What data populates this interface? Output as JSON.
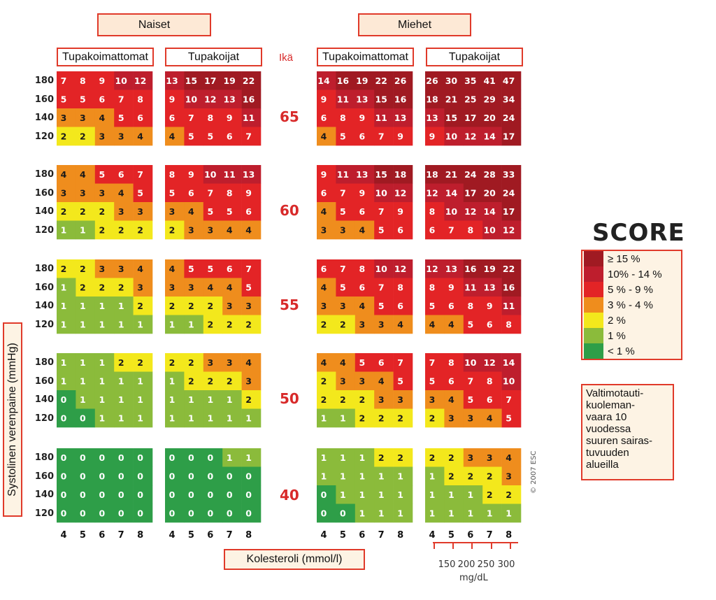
{
  "groups": {
    "women": "Naiset",
    "men": "Miehet"
  },
  "column_headers": [
    "Tupakoimattomat",
    "Tupakoijat",
    "Tupakoimattomat",
    "Tupakoijat"
  ],
  "age_header": "Ikä",
  "y_axis_label": "Systolinen verenpaine (mmHg)",
  "x_axis_label": "Kolesteroli (mmol/l)",
  "logo_text": "SCORE",
  "copyright": "© 2007 ESC",
  "legend": [
    {
      "label": "≥ 15 %",
      "color": "#a01a22"
    },
    {
      "label": "10% - 14 %",
      "color": "#be1e2d"
    },
    {
      "label": "5 % - 9 %",
      "color": "#e32426"
    },
    {
      "label": "3 % - 4 %",
      "color": "#ef8d1d"
    },
    {
      "label": "2 %",
      "color": "#f3e81c"
    },
    {
      "label": "1 %",
      "color": "#8bbb3b"
    },
    {
      "label": "< 1 %",
      "color": "#2e9e48"
    }
  ],
  "note_lines": [
    "Valtimotauti-",
    "kuoleman-",
    "vaara 10",
    "vuodessa",
    "suuren sairas-",
    "tuvuuden",
    "alueilla"
  ],
  "mgdl": {
    "ticks": [
      "150",
      "200",
      "250",
      "300"
    ],
    "unit": "mg/dL"
  },
  "chart_data": {
    "type": "heatmap",
    "title": "",
    "xlabel": "Kolesteroli (mmol/l)",
    "ylabel": "Systolinen verenpaine (mmHg)",
    "cholesterol": [
      "4",
      "5",
      "6",
      "7",
      "8"
    ],
    "sbp": [
      "180",
      "160",
      "140",
      "120"
    ],
    "ages": [
      "65",
      "60",
      "55",
      "50",
      "40"
    ],
    "panels": [
      {
        "group": "Naiset",
        "smoking": "Tupakoimattomat",
        "values": [
          [
            [
              7,
              8,
              9,
              10,
              12
            ],
            [
              5,
              5,
              6,
              7,
              8
            ],
            [
              3,
              3,
              4,
              5,
              6
            ],
            [
              2,
              2,
              3,
              3,
              4
            ]
          ],
          [
            [
              4,
              4,
              5,
              6,
              7
            ],
            [
              3,
              3,
              3,
              4,
              5
            ],
            [
              2,
              2,
              2,
              3,
              3
            ],
            [
              1,
              1,
              2,
              2,
              2
            ]
          ],
          [
            [
              2,
              2,
              3,
              3,
              4
            ],
            [
              1,
              2,
              2,
              2,
              3
            ],
            [
              1,
              1,
              1,
              1,
              2
            ],
            [
              1,
              1,
              1,
              1,
              1
            ]
          ],
          [
            [
              1,
              1,
              1,
              2,
              2
            ],
            [
              1,
              1,
              1,
              1,
              1
            ],
            [
              0,
              1,
              1,
              1,
              1
            ],
            [
              0,
              0,
              1,
              1,
              1
            ]
          ],
          [
            [
              0,
              0,
              0,
              0,
              0
            ],
            [
              0,
              0,
              0,
              0,
              0
            ],
            [
              0,
              0,
              0,
              0,
              0
            ],
            [
              0,
              0,
              0,
              0,
              0
            ]
          ]
        ]
      },
      {
        "group": "Naiset",
        "smoking": "Tupakoijat",
        "values": [
          [
            [
              13,
              15,
              17,
              19,
              22
            ],
            [
              9,
              10,
              12,
              13,
              16
            ],
            [
              6,
              7,
              8,
              9,
              11
            ],
            [
              4,
              5,
              5,
              6,
              7
            ]
          ],
          [
            [
              8,
              9,
              10,
              11,
              13
            ],
            [
              5,
              6,
              7,
              8,
              9
            ],
            [
              3,
              4,
              5,
              5,
              6
            ],
            [
              2,
              3,
              3,
              4,
              4
            ]
          ],
          [
            [
              4,
              5,
              5,
              6,
              7
            ],
            [
              3,
              3,
              4,
              4,
              5
            ],
            [
              2,
              2,
              2,
              3,
              3
            ],
            [
              1,
              1,
              2,
              2,
              2
            ]
          ],
          [
            [
              2,
              2,
              3,
              3,
              4
            ],
            [
              1,
              2,
              2,
              2,
              3
            ],
            [
              1,
              1,
              1,
              1,
              2
            ],
            [
              1,
              1,
              1,
              1,
              1
            ]
          ],
          [
            [
              0,
              0,
              0,
              1,
              1
            ],
            [
              0,
              0,
              0,
              0,
              0
            ],
            [
              0,
              0,
              0,
              0,
              0
            ],
            [
              0,
              0,
              0,
              0,
              0
            ]
          ]
        ]
      },
      {
        "group": "Miehet",
        "smoking": "Tupakoimattomat",
        "values": [
          [
            [
              14,
              16,
              19,
              22,
              26
            ],
            [
              9,
              11,
              13,
              15,
              16
            ],
            [
              6,
              8,
              9,
              11,
              13
            ],
            [
              4,
              5,
              6,
              7,
              9
            ]
          ],
          [
            [
              9,
              11,
              13,
              15,
              18
            ],
            [
              6,
              7,
              9,
              10,
              12
            ],
            [
              4,
              5,
              6,
              7,
              9
            ],
            [
              3,
              3,
              4,
              5,
              6
            ]
          ],
          [
            [
              6,
              7,
              8,
              10,
              12
            ],
            [
              4,
              5,
              6,
              7,
              8
            ],
            [
              3,
              3,
              4,
              5,
              6
            ],
            [
              2,
              2,
              3,
              3,
              4
            ]
          ],
          [
            [
              4,
              4,
              5,
              6,
              7
            ],
            [
              2,
              3,
              3,
              4,
              5
            ],
            [
              2,
              2,
              2,
              3,
              3
            ],
            [
              1,
              1,
              2,
              2,
              2
            ]
          ],
          [
            [
              1,
              1,
              1,
              2,
              2
            ],
            [
              1,
              1,
              1,
              1,
              1
            ],
            [
              0,
              1,
              1,
              1,
              1
            ],
            [
              0,
              0,
              1,
              1,
              1
            ]
          ]
        ]
      },
      {
        "group": "Miehet",
        "smoking": "Tupakoijat",
        "values": [
          [
            [
              26,
              30,
              35,
              41,
              47
            ],
            [
              18,
              21,
              25,
              29,
              34
            ],
            [
              13,
              15,
              17,
              20,
              24
            ],
            [
              9,
              10,
              12,
              14,
              17
            ]
          ],
          [
            [
              18,
              21,
              24,
              28,
              33
            ],
            [
              12,
              14,
              17,
              20,
              24
            ],
            [
              8,
              10,
              12,
              14,
              17
            ],
            [
              6,
              7,
              8,
              10,
              12
            ]
          ],
          [
            [
              12,
              13,
              16,
              19,
              22
            ],
            [
              8,
              9,
              11,
              13,
              16
            ],
            [
              5,
              6,
              8,
              9,
              11
            ],
            [
              4,
              4,
              5,
              6,
              8
            ]
          ],
          [
            [
              7,
              8,
              10,
              12,
              14
            ],
            [
              5,
              6,
              7,
              8,
              10
            ],
            [
              3,
              4,
              5,
              6,
              7
            ],
            [
              2,
              3,
              3,
              4,
              5
            ]
          ],
          [
            [
              2,
              2,
              3,
              3,
              4
            ],
            [
              1,
              2,
              2,
              2,
              3
            ],
            [
              1,
              1,
              1,
              2,
              2
            ],
            [
              1,
              1,
              1,
              1,
              1
            ]
          ]
        ]
      }
    ]
  }
}
